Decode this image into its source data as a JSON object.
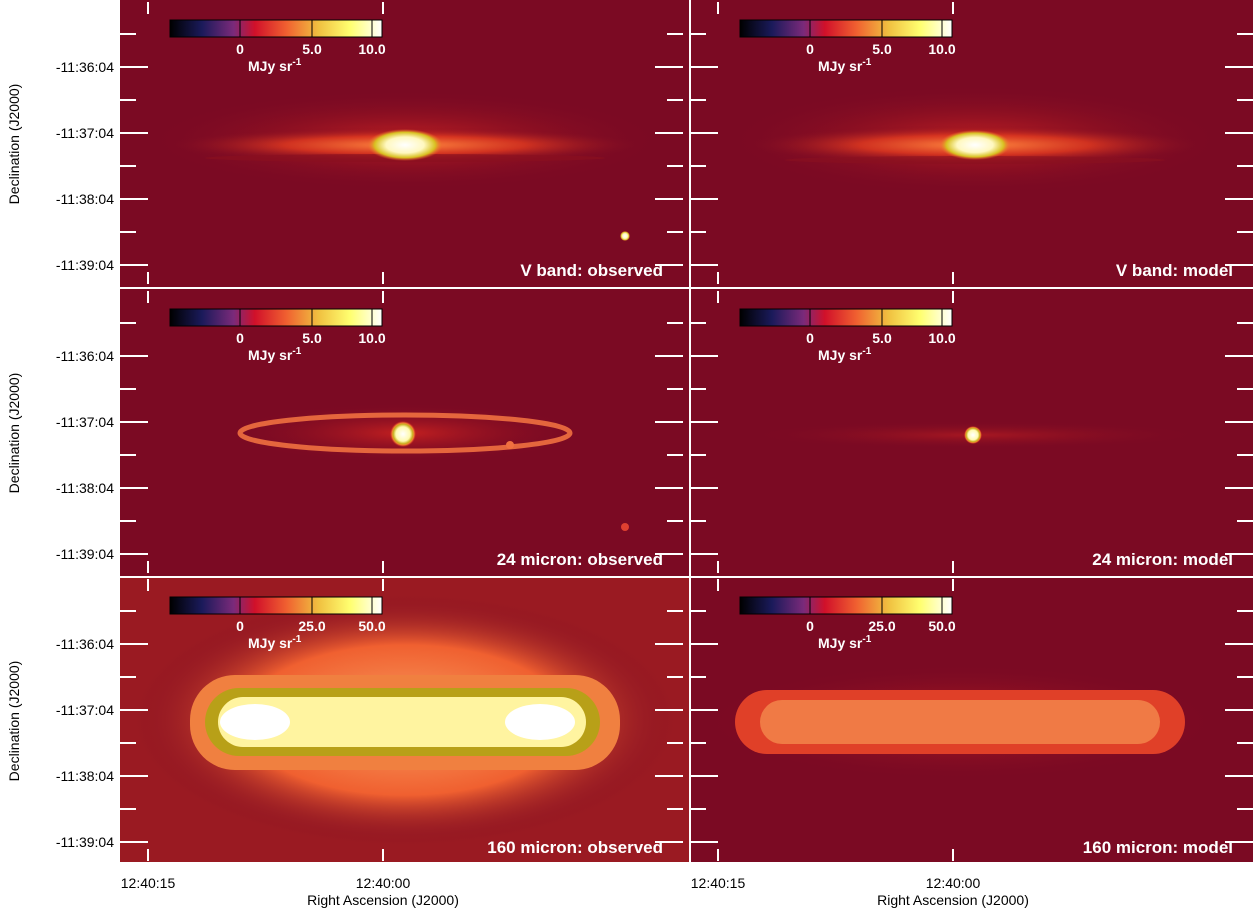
{
  "y_axis": {
    "label": "Declination (J2000)",
    "ticks": [
      "-11:36:04",
      "-11:37:04",
      "-11:38:04",
      "-11:39:04"
    ]
  },
  "x_axis": {
    "label": "Right Ascension (J2000)",
    "ticks": [
      "12:40:15",
      "12:40:00"
    ]
  },
  "colorbar_unit": {
    "text": "MJy sr",
    "exponent": "-1"
  },
  "panels": [
    {
      "label": "V band: observed",
      "colorbar_ticks": [
        "0",
        "5.0",
        "10.0"
      ]
    },
    {
      "label": "V band: model",
      "colorbar_ticks": [
        "0",
        "5.0",
        "10.0"
      ]
    },
    {
      "label": "24 micron: observed",
      "colorbar_ticks": [
        "0",
        "5.0",
        "10.0"
      ]
    },
    {
      "label": "24 micron: model",
      "colorbar_ticks": [
        "0",
        "5.0",
        "10.0"
      ]
    },
    {
      "label": "160 micron: observed",
      "colorbar_ticks": [
        "0",
        "25.0",
        "50.0"
      ]
    },
    {
      "label": "160 micron: model",
      "colorbar_ticks": [
        "0",
        "25.0",
        "50.0"
      ]
    }
  ]
}
